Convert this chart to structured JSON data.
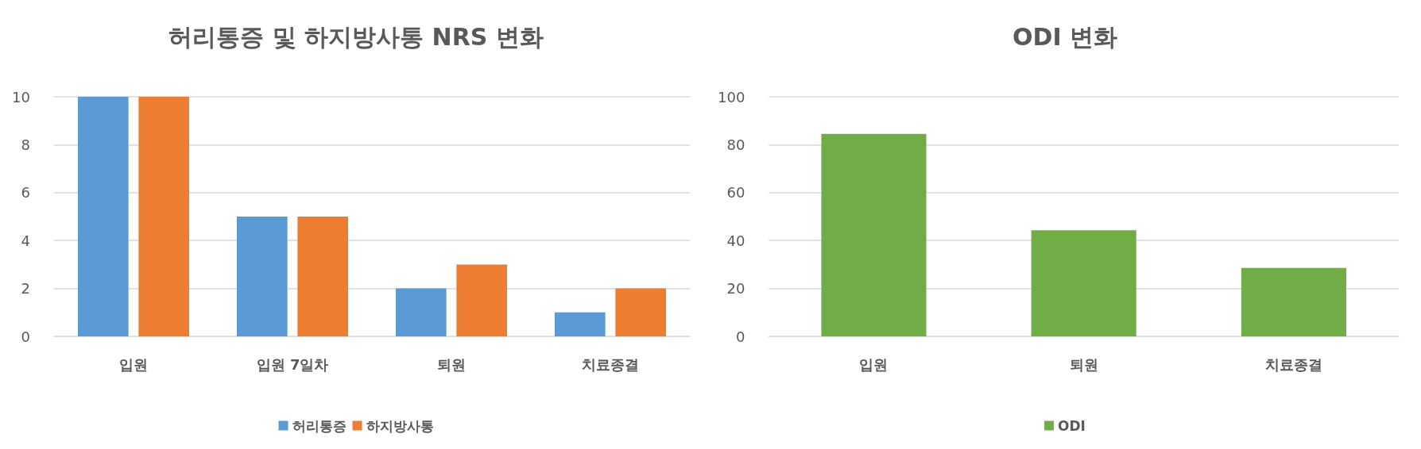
{
  "chart_data": [
    {
      "type": "bar",
      "title": "허리통증 및 하지방사통 NRS 변화",
      "categories": [
        "입원",
        "입원 7일차",
        "퇴원",
        "치료종결"
      ],
      "series": [
        {
          "name": "허리통증",
          "color": "#5b9bd5",
          "values": [
            10,
            5,
            2,
            1
          ]
        },
        {
          "name": "하지방사통",
          "color": "#ed7d31",
          "values": [
            10,
            5,
            3,
            2
          ]
        }
      ],
      "ylim": [
        0,
        10
      ],
      "yticks": [
        0,
        2,
        4,
        6,
        8,
        10
      ],
      "grid": "y",
      "legend": "bottom"
    },
    {
      "type": "bar",
      "title": "ODI 변화",
      "categories": [
        "입원",
        "퇴원",
        "치료종결"
      ],
      "series": [
        {
          "name": "ODI",
          "color": "#70ad47",
          "values": [
            84.5,
            44.3,
            28.6
          ]
        }
      ],
      "ylim": [
        0,
        100
      ],
      "yticks": [
        0,
        20,
        40,
        60,
        80,
        100
      ],
      "grid": "y",
      "legend": "bottom"
    }
  ]
}
